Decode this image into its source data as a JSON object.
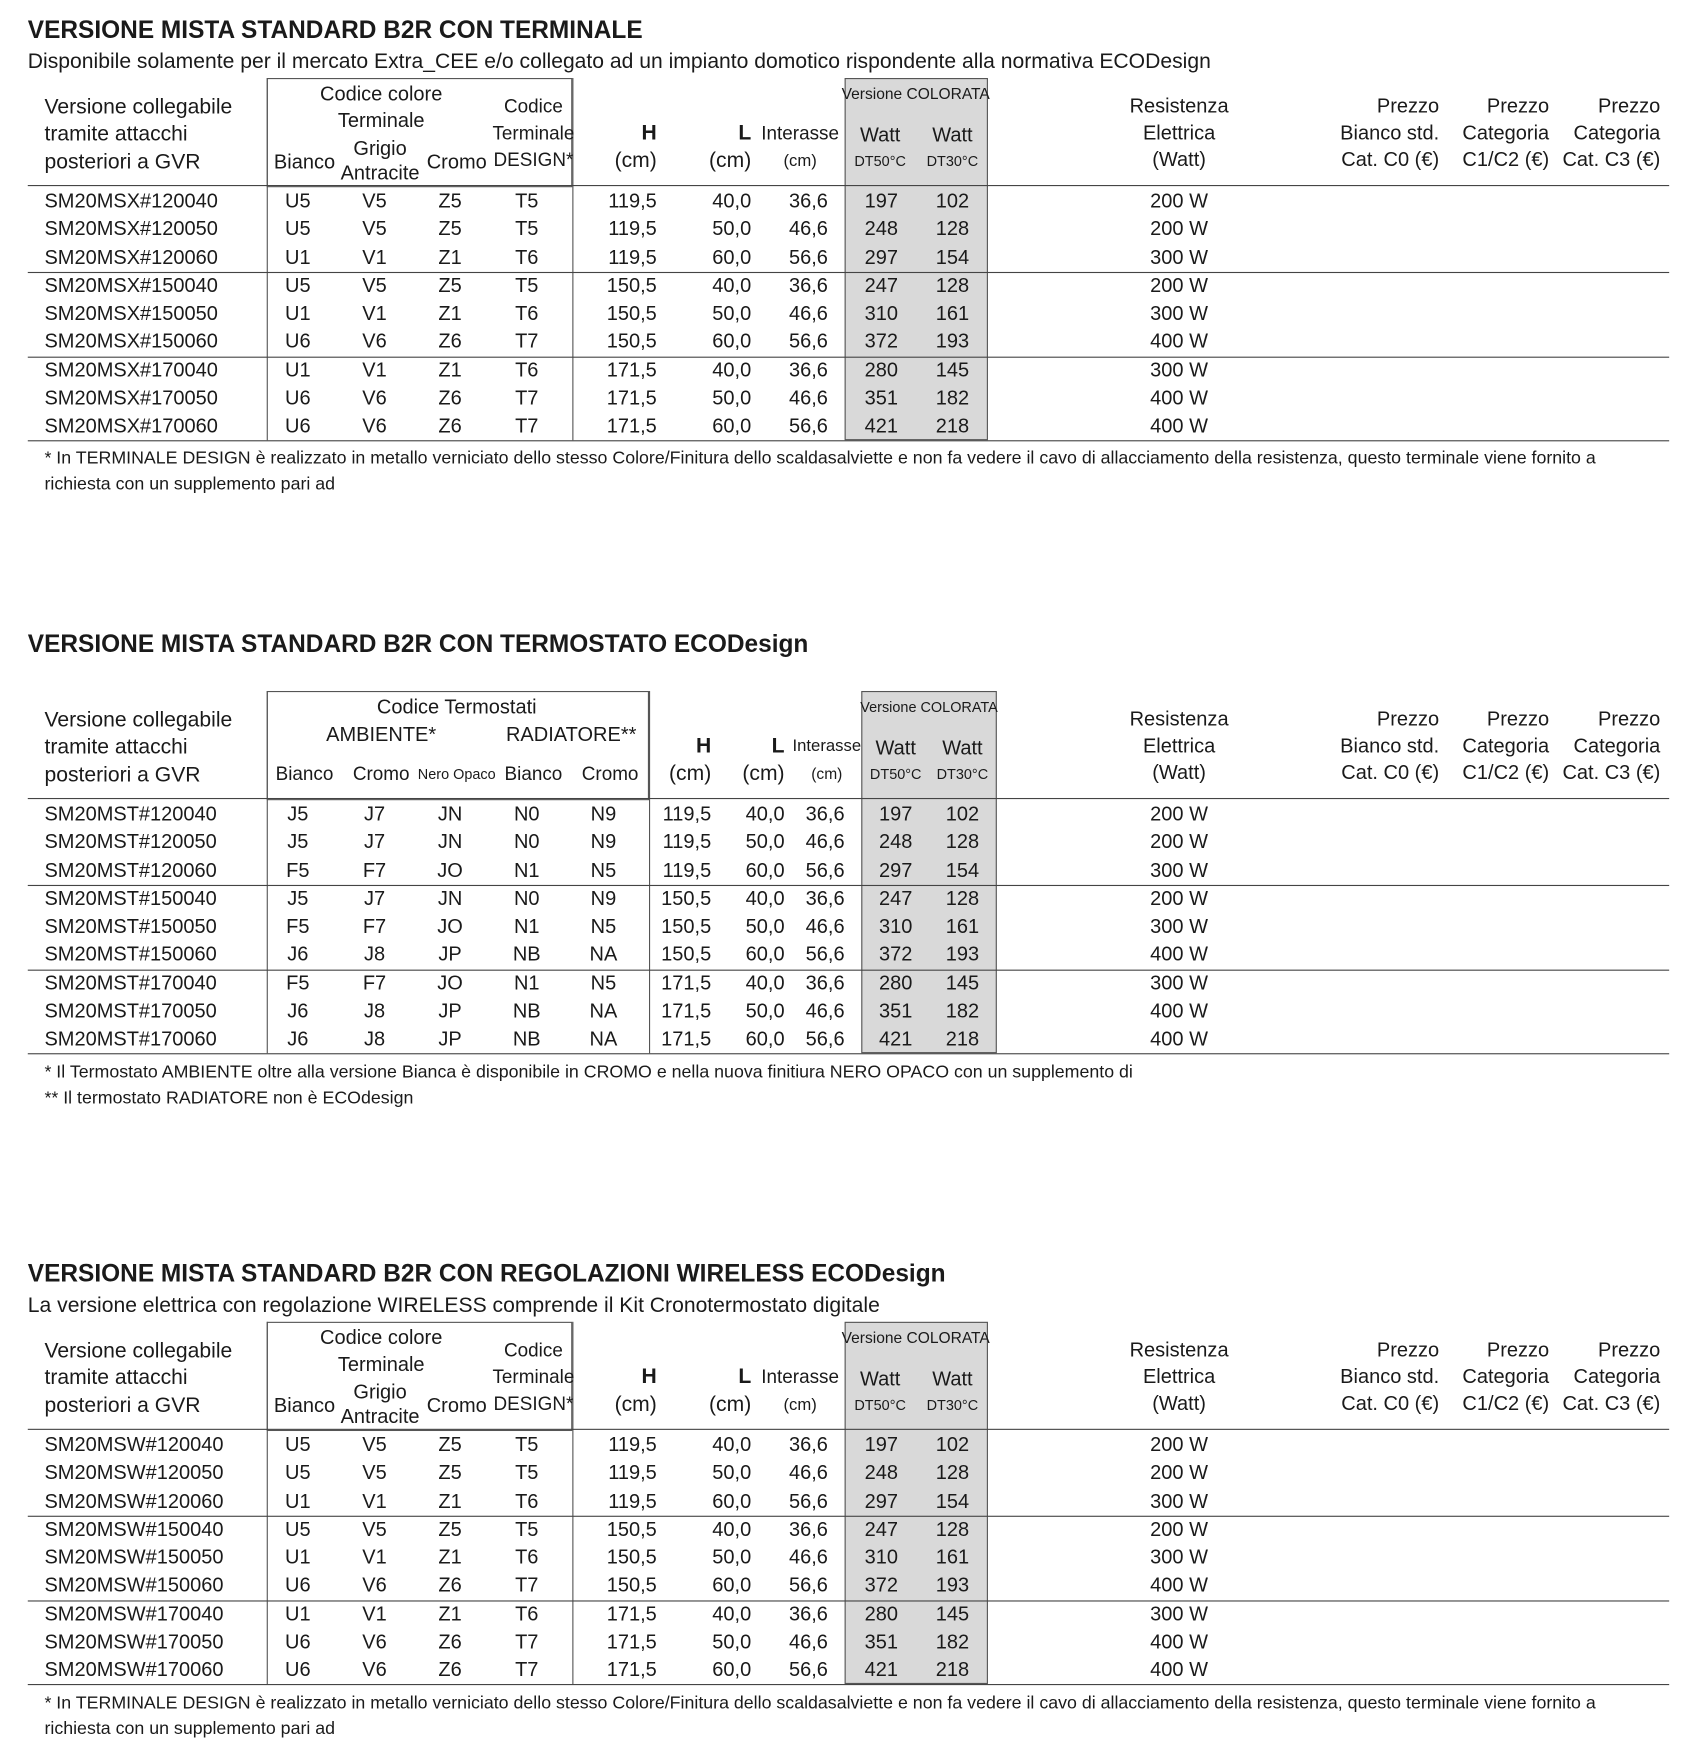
{
  "sections": [
    {
      "title": "VERSIONE MISTA STANDARD B2R CON TERMINALE",
      "subtitle": "Disponibile solamente per il mercato Extra_CEE e/o collegato ad un impianto domotico rispondente alla normativa ECODesign",
      "header": [
        [
          "Versione collegabile",
          "tramite attacchi",
          "posteriori a GVR"
        ],
        [
          "Codice colore",
          "Terminale"
        ],
        [
          "Bianco"
        ],
        [
          "Grigio",
          "Antracite"
        ],
        [
          "Cromo"
        ],
        [
          "Codice",
          "Terminale",
          "DESIGN*"
        ],
        [
          "H",
          "(cm)"
        ],
        [
          "L",
          "(cm)"
        ],
        [
          "Interasse",
          "(cm)"
        ],
        [
          "Versione COLORATA"
        ],
        [
          "Watt",
          "DT50°C"
        ],
        [
          "Watt",
          "DT30°C"
        ],
        [
          "Resistenza",
          "Elettrica",
          "(Watt)"
        ],
        [
          "Prezzo",
          "Bianco std.",
          "Cat. C0 (€)"
        ],
        [
          "Prezzo",
          "Categoria",
          "C1/C2 (€)"
        ],
        [
          "Prezzo",
          "Categoria",
          "Cat. C3 (€)"
        ]
      ],
      "rows": [
        [
          "SM20MSX#120040",
          "U5",
          "V5",
          "Z5",
          "T5",
          "119,5",
          "40,0",
          "36,6",
          "197",
          "102",
          "200 W"
        ],
        [
          "SM20MSX#120050",
          "U5",
          "V5",
          "Z5",
          "T5",
          "119,5",
          "50,0",
          "46,6",
          "248",
          "128",
          "200 W"
        ],
        [
          "SM20MSX#120060",
          "U1",
          "V1",
          "Z1",
          "T6",
          "119,5",
          "60,0",
          "56,6",
          "297",
          "154",
          "300 W"
        ],
        [
          "SM20MSX#150040",
          "U5",
          "V5",
          "Z5",
          "T5",
          "150,5",
          "40,0",
          "36,6",
          "247",
          "128",
          "200 W"
        ],
        [
          "SM20MSX#150050",
          "U1",
          "V1",
          "Z1",
          "T6",
          "150,5",
          "50,0",
          "46,6",
          "310",
          "161",
          "300 W"
        ],
        [
          "SM20MSX#150060",
          "U6",
          "V6",
          "Z6",
          "T7",
          "150,5",
          "60,0",
          "56,6",
          "372",
          "193",
          "400 W"
        ],
        [
          "SM20MSX#170040",
          "U1",
          "V1",
          "Z1",
          "T6",
          "171,5",
          "40,0",
          "36,6",
          "280",
          "145",
          "300 W"
        ],
        [
          "SM20MSX#170050",
          "U6",
          "V6",
          "Z6",
          "T7",
          "171,5",
          "50,0",
          "46,6",
          "351",
          "182",
          "400 W"
        ],
        [
          "SM20MSX#170060",
          "U6",
          "V6",
          "Z6",
          "T7",
          "171,5",
          "60,0",
          "56,6",
          "421",
          "218",
          "400 W"
        ]
      ],
      "notes": [
        "* In TERMINALE DESIGN è realizzato in metallo verniciato dello stesso Colore/Finitura dello scaldasalviette e non fa vedere il cavo di allacciamento della resistenza, questo terminale viene fornito a richiesta con un supplemento pari ad"
      ]
    },
    {
      "title": "VERSIONE MISTA STANDARD B2R CON TERMOSTATO ECODesign",
      "header": [
        [
          "Versione collegabile",
          "tramite attacchi",
          "posteriori a GVR"
        ],
        [
          "Codice Termostati"
        ],
        [
          "AMBIENTE*"
        ],
        [
          "RADIATORE**"
        ],
        [
          "Bianco"
        ],
        [
          "Cromo"
        ],
        [
          "Nero Opaco"
        ],
        [
          "Bianco"
        ],
        [
          "Cromo"
        ],
        [
          "H",
          "(cm)"
        ],
        [
          "L",
          "(cm)"
        ],
        [
          "Interasse",
          "(cm)"
        ],
        [
          "Versione COLORATA"
        ],
        [
          "Watt",
          "DT50°C"
        ],
        [
          "Watt",
          "DT30°C"
        ],
        [
          "Resistenza",
          "Elettrica",
          "(Watt)"
        ],
        [
          "Prezzo",
          "Bianco std.",
          "Cat. C0 (€)"
        ],
        [
          "Prezzo",
          "Categoria",
          "C1/C2 (€)"
        ],
        [
          "Prezzo",
          "Categoria",
          "Cat. C3 (€)"
        ]
      ],
      "rows": [
        [
          "SM20MST#120040",
          "J5",
          "J7",
          "JN",
          "N0",
          "N9",
          "119,5",
          "40,0",
          "36,6",
          "197",
          "102",
          "200 W"
        ],
        [
          "SM20MST#120050",
          "J5",
          "J7",
          "JN",
          "N0",
          "N9",
          "119,5",
          "50,0",
          "46,6",
          "248",
          "128",
          "200 W"
        ],
        [
          "SM20MST#120060",
          "F5",
          "F7",
          "JO",
          "N1",
          "N5",
          "119,5",
          "60,0",
          "56,6",
          "297",
          "154",
          "300 W"
        ],
        [
          "SM20MST#150040",
          "J5",
          "J7",
          "JN",
          "N0",
          "N9",
          "150,5",
          "40,0",
          "36,6",
          "247",
          "128",
          "200 W"
        ],
        [
          "SM20MST#150050",
          "F5",
          "F7",
          "JO",
          "N1",
          "N5",
          "150,5",
          "50,0",
          "46,6",
          "310",
          "161",
          "300 W"
        ],
        [
          "SM20MST#150060",
          "J6",
          "J8",
          "JP",
          "NB",
          "NA",
          "150,5",
          "60,0",
          "56,6",
          "372",
          "193",
          "400 W"
        ],
        [
          "SM20MST#170040",
          "F5",
          "F7",
          "JO",
          "N1",
          "N5",
          "171,5",
          "40,0",
          "36,6",
          "280",
          "145",
          "300 W"
        ],
        [
          "SM20MST#170050",
          "J6",
          "J8",
          "JP",
          "NB",
          "NA",
          "171,5",
          "50,0",
          "46,6",
          "351",
          "182",
          "400 W"
        ],
        [
          "SM20MST#170060",
          "J6",
          "J8",
          "JP",
          "NB",
          "NA",
          "171,5",
          "60,0",
          "56,6",
          "421",
          "218",
          "400 W"
        ]
      ],
      "notes": [
        "* Il Termostato AMBIENTE oltre alla versione Bianca è disponibile in CROMO e nella nuova finitiura NERO OPACO con un supplemento di",
        "** Il termostato RADIATORE non è ECOdesign"
      ]
    },
    {
      "title": "VERSIONE MISTA STANDARD B2R CON REGOLAZIONI WIRELESS ECODesign",
      "subtitle": "La versione elettrica con regolazione WIRELESS comprende il Kit Cronotermostato digitale",
      "header": [
        [
          "Versione collegabile",
          "tramite attacchi",
          "posteriori a GVR"
        ],
        [
          "Codice colore",
          "Terminale"
        ],
        [
          "Bianco"
        ],
        [
          "Grigio",
          "Antracite"
        ],
        [
          "Cromo"
        ],
        [
          "Codice",
          "Terminale",
          "DESIGN*"
        ],
        [
          "H",
          "(cm)"
        ],
        [
          "L",
          "(cm)"
        ],
        [
          "Interasse",
          "(cm)"
        ],
        [
          "Versione COLORATA"
        ],
        [
          "Watt",
          "DT50°C"
        ],
        [
          "Watt",
          "DT30°C"
        ],
        [
          "Resistenza",
          "Elettrica",
          "(Watt)"
        ],
        [
          "Prezzo",
          "Bianco std.",
          "Cat. C0 (€)"
        ],
        [
          "Prezzo",
          "Categoria",
          "C1/C2 (€)"
        ],
        [
          "Prezzo",
          "Categoria",
          "Cat. C3 (€)"
        ]
      ],
      "rows": [
        [
          "SM20MSW#120040",
          "U5",
          "V5",
          "Z5",
          "T5",
          "119,5",
          "40,0",
          "36,6",
          "197",
          "102",
          "200 W"
        ],
        [
          "SM20MSW#120050",
          "U5",
          "V5",
          "Z5",
          "T5",
          "119,5",
          "50,0",
          "46,6",
          "248",
          "128",
          "200 W"
        ],
        [
          "SM20MSW#120060",
          "U1",
          "V1",
          "Z1",
          "T6",
          "119,5",
          "60,0",
          "56,6",
          "297",
          "154",
          "300 W"
        ],
        [
          "SM20MSW#150040",
          "U5",
          "V5",
          "Z5",
          "T5",
          "150,5",
          "40,0",
          "36,6",
          "247",
          "128",
          "200 W"
        ],
        [
          "SM20MSW#150050",
          "U1",
          "V1",
          "Z1",
          "T6",
          "150,5",
          "50,0",
          "46,6",
          "310",
          "161",
          "300 W"
        ],
        [
          "SM20MSW#150060",
          "U6",
          "V6",
          "Z6",
          "T7",
          "150,5",
          "60,0",
          "56,6",
          "372",
          "193",
          "400 W"
        ],
        [
          "SM20MSW#170040",
          "U1",
          "V1",
          "Z1",
          "T6",
          "171,5",
          "40,0",
          "36,6",
          "280",
          "145",
          "300 W"
        ],
        [
          "SM20MSW#170050",
          "U6",
          "V6",
          "Z6",
          "T7",
          "171,5",
          "50,0",
          "46,6",
          "351",
          "182",
          "400 W"
        ],
        [
          "SM20MSW#170060",
          "U6",
          "V6",
          "Z6",
          "T7",
          "171,5",
          "60,0",
          "56,6",
          "421",
          "218",
          "400 W"
        ]
      ],
      "notes": [
        "* In TERMINALE DESIGN è realizzato in metallo verniciato dello stesso Colore/Finitura dello scaldasalviette e non fa vedere il cavo di allacciamento della resistenza, questo terminale viene fornito a richiesta con un supplemento pari ad"
      ]
    }
  ]
}
